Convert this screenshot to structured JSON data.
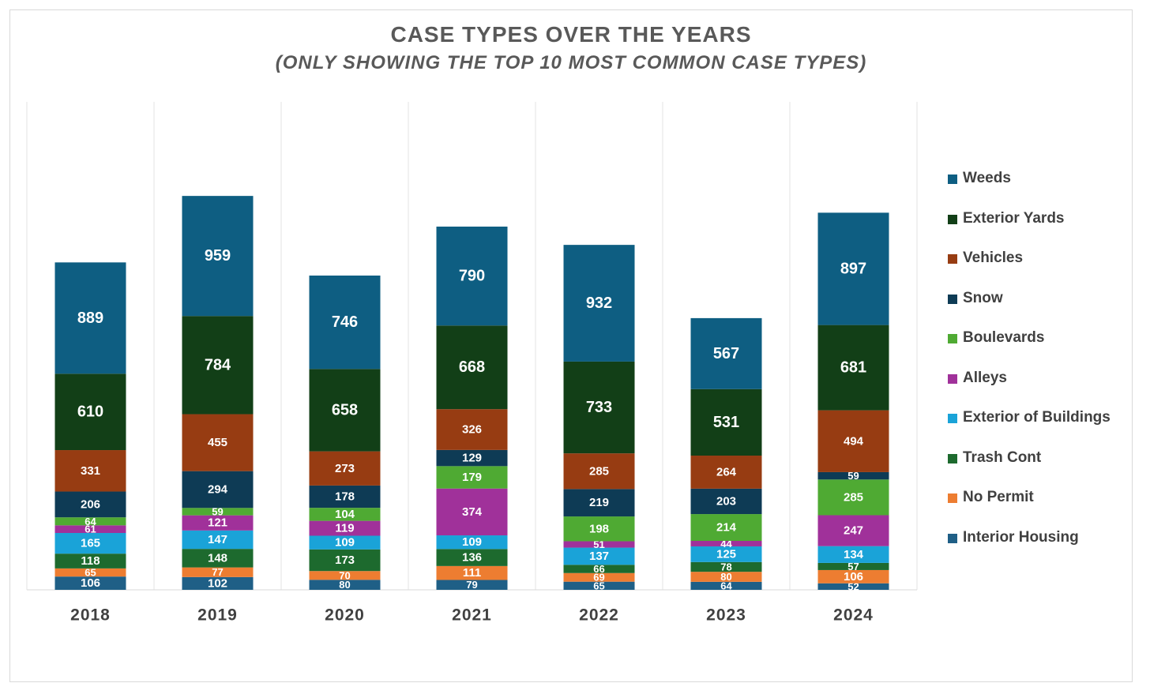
{
  "chart_data": {
    "type": "bar",
    "stacked": true,
    "title": "CASE TYPES OVER THE YEARS",
    "subtitle": "(ONLY SHOWING THE TOP 10 MOST COMMON CASE TYPES)",
    "categories": [
      "2018",
      "2019",
      "2020",
      "2021",
      "2022",
      "2023",
      "2024"
    ],
    "ylim": [
      0,
      3500
    ],
    "series": [
      {
        "name": "Interior Housing",
        "color": "#1f5f86",
        "values": [
          106,
          102,
          80,
          79,
          65,
          64,
          52
        ]
      },
      {
        "name": "No Permit",
        "color": "#ed7d31",
        "values": [
          65,
          77,
          70,
          111,
          69,
          80,
          106
        ]
      },
      {
        "name": "Trash Cont",
        "color": "#1d6a2e",
        "values": [
          118,
          148,
          173,
          136,
          66,
          78,
          57
        ]
      },
      {
        "name": "Exterior of Buildings",
        "color": "#1aa3d8",
        "values": [
          165,
          147,
          109,
          109,
          137,
          125,
          134
        ]
      },
      {
        "name": "Alleys",
        "color": "#a0319a",
        "values": [
          61,
          121,
          119,
          374,
          51,
          44,
          247
        ]
      },
      {
        "name": "Boulevards",
        "color": "#4faa33",
        "values": [
          64,
          59,
          104,
          179,
          198,
          214,
          285
        ]
      },
      {
        "name": "Snow",
        "color": "#0e3b55",
        "values": [
          206,
          294,
          178,
          129,
          219,
          203,
          59
        ]
      },
      {
        "name": "Vehicles",
        "color": "#973c12",
        "values": [
          331,
          455,
          273,
          326,
          285,
          264,
          494
        ]
      },
      {
        "name": "Exterior Yards",
        "color": "#123f17",
        "values": [
          610,
          784,
          658,
          668,
          733,
          531,
          681
        ]
      },
      {
        "name": "Weeds",
        "color": "#0e5e82",
        "values": [
          889,
          959,
          746,
          790,
          932,
          567,
          897
        ]
      }
    ],
    "legend_order": [
      "Weeds",
      "Exterior Yards",
      "Vehicles",
      "Snow",
      "Boulevards",
      "Alleys",
      "Exterior of Buildings",
      "Trash Cont",
      "No Permit",
      "Interior Housing"
    ],
    "legend_position": "right",
    "gridlines": "vertical-category-separators"
  }
}
